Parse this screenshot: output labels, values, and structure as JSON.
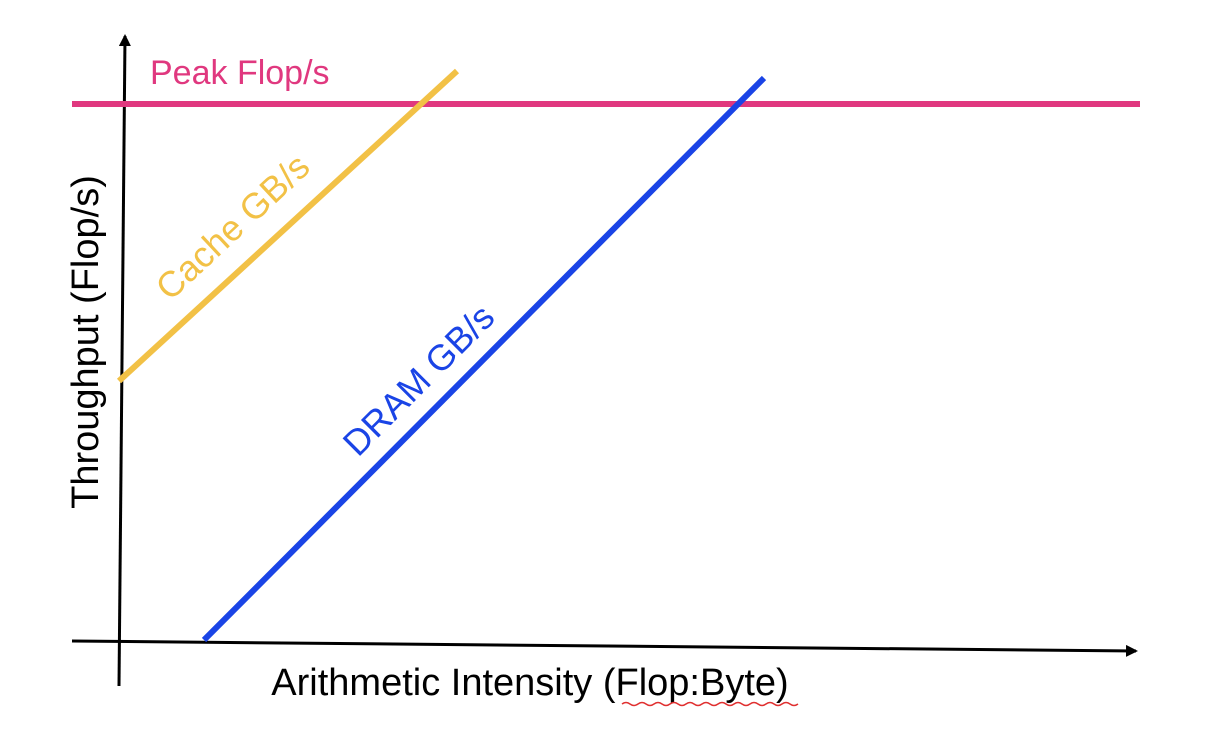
{
  "diagram": {
    "type": "roofline",
    "x_axis_label": "Arithmetic Intensity (Flop:Byte)",
    "y_axis_label": "Throughput (Flop/s)",
    "lines": [
      {
        "name": "peak",
        "label": "Peak Flop/s",
        "color": "#E0387F",
        "kind": "horizontal"
      },
      {
        "name": "cache",
        "label": "Cache GB/s",
        "color": "#F2C146",
        "kind": "diagonal"
      },
      {
        "name": "dram",
        "label": "DRAM GB/s",
        "color": "#1A44E6",
        "kind": "diagonal"
      }
    ],
    "axis_color": "#000000",
    "spellcheck_underline_color": "#E03030"
  }
}
